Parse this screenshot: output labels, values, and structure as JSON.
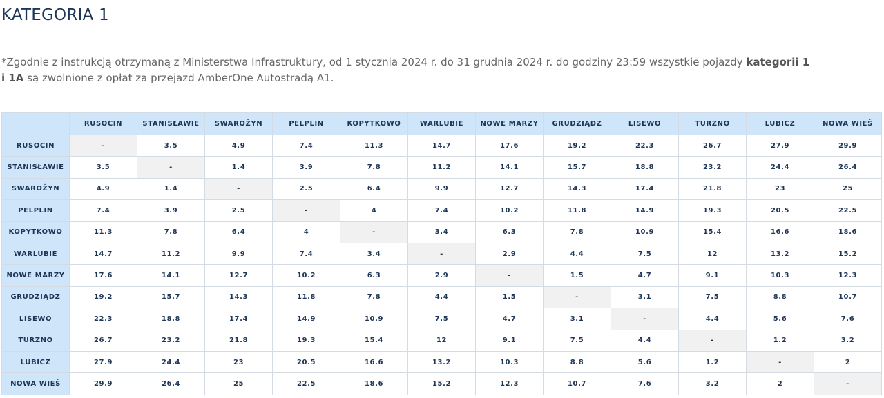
{
  "header": {
    "title": "KATEGORIA 1"
  },
  "note": {
    "text_before": "*Zgodnie z instrukcją otrzymaną z Ministerstwa Infrastruktury, od 1 stycznia 2024 r.  do 31 grudnia 2024 r. do godziny 23:59 wszystkie pojazdy ",
    "bold": "kategorii 1 i 1A",
    "text_after": " są zwolnione z opłat za przejazd AmberOne Autostradą A1."
  },
  "table": {
    "columns": [
      "RUSOCIN",
      "STANISŁAWIE",
      "SWAROŻYN",
      "PELPLIN",
      "KOPYTKOWO",
      "WARLUBIE",
      "NOWE MARZY",
      "GRUDZIĄDZ",
      "LISEWO",
      "TURZNO",
      "LUBICZ",
      "NOWA WIEŚ"
    ],
    "rows": [
      {
        "label": "RUSOCIN",
        "cells": [
          "-",
          3.5,
          4.9,
          7.4,
          11.3,
          14.7,
          17.6,
          19.2,
          22.3,
          26.7,
          27.9,
          29.9
        ]
      },
      {
        "label": "STANISŁAWIE",
        "cells": [
          3.5,
          "-",
          1.4,
          3.9,
          7.8,
          11.2,
          14.1,
          15.7,
          18.8,
          23.2,
          24.4,
          26.4
        ]
      },
      {
        "label": "SWAROŻYN",
        "cells": [
          4.9,
          1.4,
          "-",
          2.5,
          6.4,
          9.9,
          12.7,
          14.3,
          17.4,
          21.8,
          23,
          25
        ]
      },
      {
        "label": "PELPLIN",
        "cells": [
          7.4,
          3.9,
          2.5,
          "-",
          4,
          7.4,
          10.2,
          11.8,
          14.9,
          19.3,
          20.5,
          22.5
        ]
      },
      {
        "label": "KOPYTKOWO",
        "cells": [
          11.3,
          7.8,
          6.4,
          4,
          "-",
          3.4,
          6.3,
          7.8,
          10.9,
          15.4,
          16.6,
          18.6
        ]
      },
      {
        "label": "WARLUBIE",
        "cells": [
          14.7,
          11.2,
          9.9,
          7.4,
          3.4,
          "-",
          2.9,
          4.4,
          7.5,
          12,
          13.2,
          15.2
        ]
      },
      {
        "label": "NOWE MARZY",
        "cells": [
          17.6,
          14.1,
          12.7,
          10.2,
          6.3,
          2.9,
          "-",
          1.5,
          4.7,
          9.1,
          10.3,
          12.3
        ]
      },
      {
        "label": "GRUDZIĄDZ",
        "cells": [
          19.2,
          15.7,
          14.3,
          11.8,
          7.8,
          4.4,
          1.5,
          "-",
          3.1,
          7.5,
          8.8,
          10.7
        ]
      },
      {
        "label": "LISEWO",
        "cells": [
          22.3,
          18.8,
          17.4,
          14.9,
          10.9,
          7.5,
          4.7,
          3.1,
          "-",
          4.4,
          5.6,
          7.6
        ]
      },
      {
        "label": "TURZNO",
        "cells": [
          26.7,
          23.2,
          21.8,
          19.3,
          15.4,
          12,
          9.1,
          7.5,
          4.4,
          "-",
          1.2,
          3.2
        ]
      },
      {
        "label": "LUBICZ",
        "cells": [
          27.9,
          24.4,
          23,
          20.5,
          16.6,
          13.2,
          10.3,
          8.8,
          5.6,
          1.2,
          "-",
          2
        ]
      },
      {
        "label": "NOWA WIEŚ",
        "cells": [
          29.9,
          26.4,
          25,
          22.5,
          18.6,
          15.2,
          12.3,
          10.7,
          7.6,
          3.2,
          2,
          "-"
        ]
      }
    ]
  }
}
